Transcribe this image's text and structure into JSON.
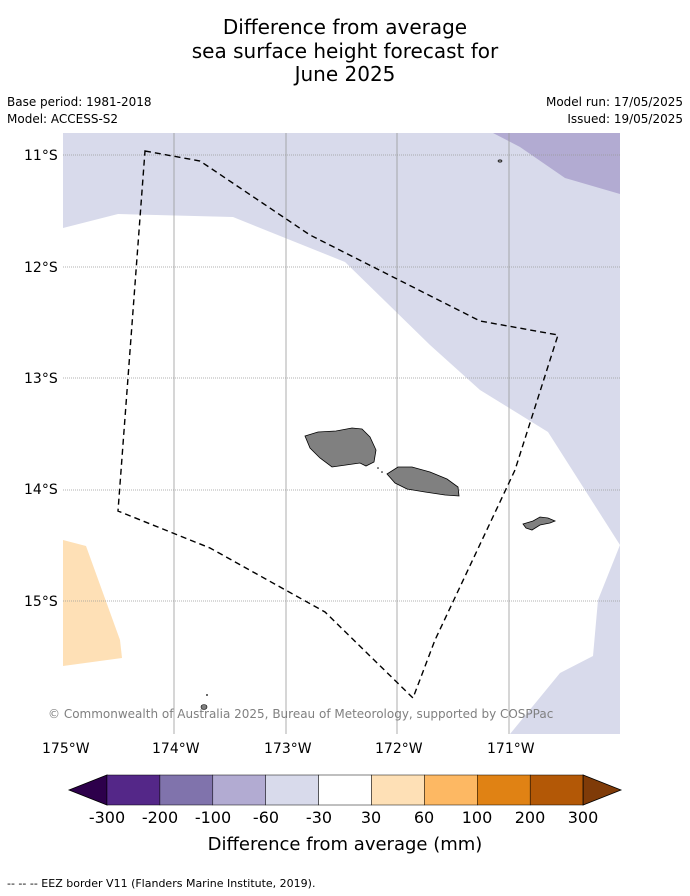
{
  "title": {
    "line1": "Difference from average",
    "line2": "sea surface height forecast for",
    "line3": "June 2025"
  },
  "meta": {
    "base_period": "Base period: 1981-2018",
    "model": "Model: ACCESS-S2",
    "model_run": "Model run: 17/05/2025",
    "issued": "Issued: 19/05/2025"
  },
  "map": {
    "lat_labels": [
      "11°S",
      "12°S",
      "13°S",
      "14°S",
      "15°S"
    ],
    "lon_labels": [
      "175°W",
      "174°W",
      "173°W",
      "172°W",
      "171°W"
    ],
    "credit": "© Commonwealth of Australia 2025, Bureau of Meteorology, supported by COSPPac"
  },
  "colorbar": {
    "label": "Difference from average (mm)",
    "ticks": [
      "-300",
      "-200",
      "-100",
      "-60",
      "-30",
      "30",
      "60",
      "100",
      "200",
      "300"
    ],
    "colors": [
      "#2d004b",
      "#542788",
      "#8073ac",
      "#b2abd2",
      "#d8daeb",
      "#ffffff",
      "#fee0b6",
      "#fdb863",
      "#e08214",
      "#b35806",
      "#7f3b08"
    ]
  },
  "footer": "--  --  -- EEZ border V11 (Flanders Marine Institute, 2019)."
}
